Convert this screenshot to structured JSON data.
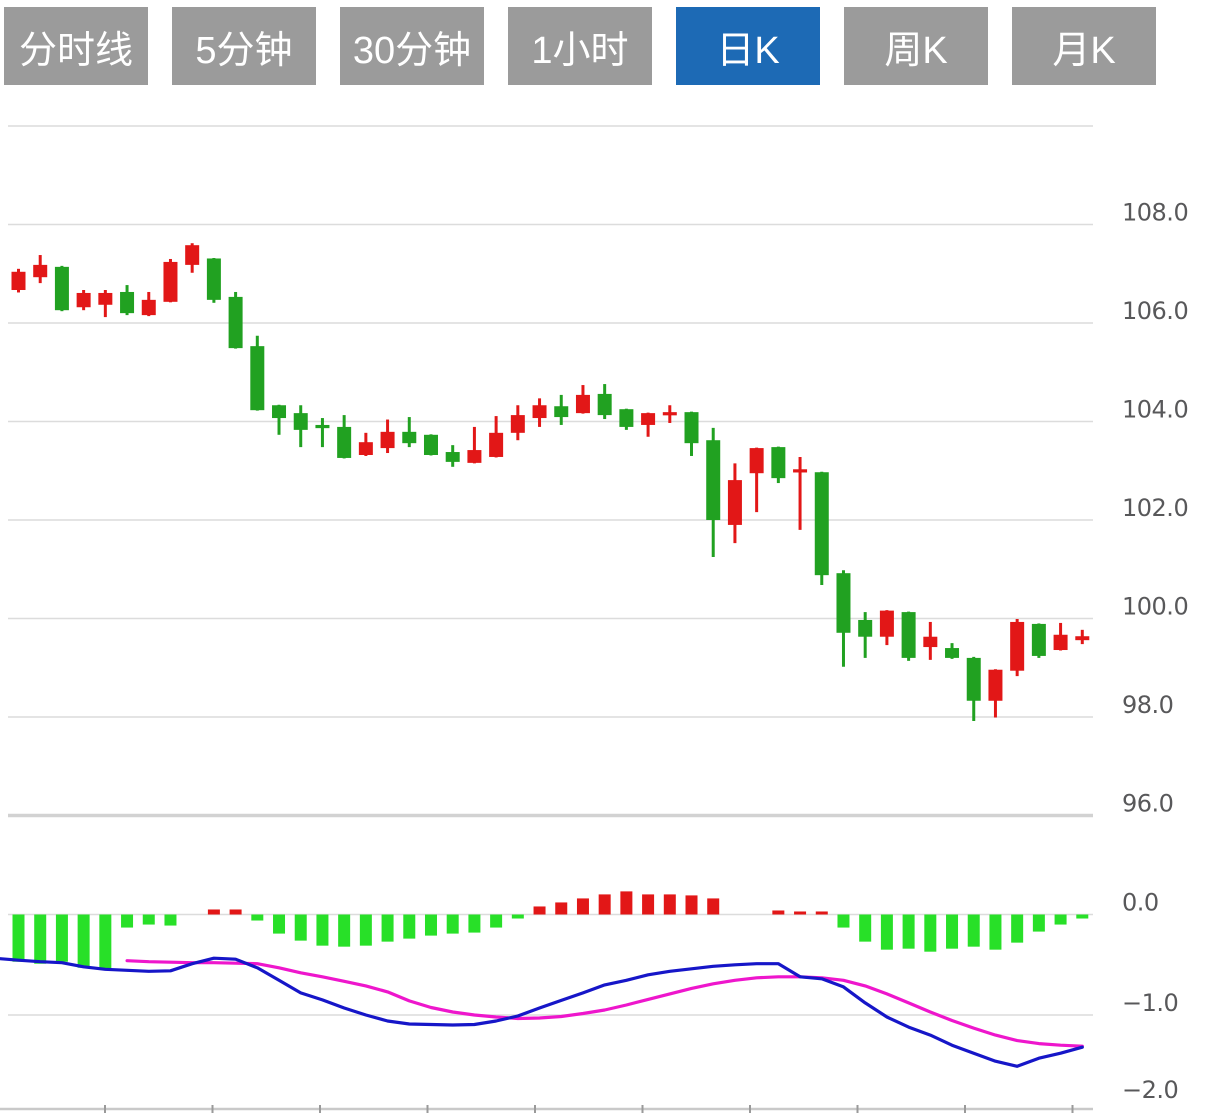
{
  "toolbar": {
    "tabs": [
      {
        "id": "timeshare",
        "label": "分时线",
        "active": false
      },
      {
        "id": "5min",
        "label": "5分钟",
        "active": false
      },
      {
        "id": "30min",
        "label": "30分钟",
        "active": false
      },
      {
        "id": "1hour",
        "label": "1小时",
        "active": false
      },
      {
        "id": "daily-k",
        "label": "日K",
        "active": true
      },
      {
        "id": "weekly-k",
        "label": "周K",
        "active": false
      },
      {
        "id": "monthly-k",
        "label": "月K",
        "active": false
      }
    ],
    "colors": {
      "active_bg": "#1d6ab5",
      "inactive_bg": "#9b9b9b",
      "text": "#ffffff"
    }
  },
  "chart_data": {
    "type": "candlestick+macd",
    "description": "Daily K-line (candlestick) chart with MACD sub-pane; red = up, green = down (CN convention)",
    "price_pane": {
      "ylim": [
        95.0,
        110.0
      ],
      "grid_values": [
        110,
        108,
        106,
        104,
        102,
        100,
        98,
        96
      ],
      "axis_ticks": [
        {
          "label": "108.0",
          "value": 108
        },
        {
          "label": "106.0",
          "value": 106
        },
        {
          "label": "104.0",
          "value": 104
        },
        {
          "label": "102.0",
          "value": 102
        },
        {
          "label": "100.0",
          "value": 100
        },
        {
          "label": "98.0",
          "value": 98
        },
        {
          "label": "96.0",
          "value": 96
        }
      ],
      "candles_ohlc": [
        [
          106.67,
          107.1,
          106.62,
          107.04
        ],
        [
          106.93,
          107.38,
          106.81,
          107.18
        ],
        [
          107.14,
          107.16,
          106.24,
          106.26
        ],
        [
          106.32,
          106.67,
          106.26,
          106.61
        ],
        [
          106.37,
          106.67,
          106.12,
          106.61
        ],
        [
          106.63,
          106.77,
          106.16,
          106.2
        ],
        [
          106.16,
          106.63,
          106.14,
          106.47
        ],
        [
          106.43,
          107.3,
          106.42,
          107.24
        ],
        [
          107.18,
          107.62,
          107.02,
          107.58
        ],
        [
          107.31,
          107.32,
          106.41,
          106.47
        ],
        [
          106.53,
          106.63,
          105.48,
          105.49
        ],
        [
          105.53,
          105.74,
          104.22,
          104.23
        ],
        [
          104.33,
          104.34,
          103.73,
          104.07
        ],
        [
          104.17,
          104.33,
          103.48,
          103.83
        ],
        [
          103.93,
          104.07,
          103.48,
          103.87
        ],
        [
          103.89,
          104.13,
          103.25,
          103.26
        ],
        [
          103.32,
          103.77,
          103.3,
          103.58
        ],
        [
          103.46,
          104.04,
          103.36,
          103.79
        ],
        [
          103.79,
          104.09,
          103.48,
          103.56
        ],
        [
          103.73,
          103.74,
          103.31,
          103.32
        ],
        [
          103.38,
          103.52,
          103.08,
          103.18
        ],
        [
          103.16,
          103.89,
          103.15,
          103.42
        ],
        [
          103.28,
          104.11,
          103.27,
          103.77
        ],
        [
          103.77,
          104.33,
          103.62,
          104.13
        ],
        [
          104.07,
          104.47,
          103.89,
          104.33
        ],
        [
          104.31,
          104.54,
          103.93,
          104.09
        ],
        [
          104.17,
          104.74,
          104.16,
          104.54
        ],
        [
          104.56,
          104.76,
          104.05,
          104.13
        ],
        [
          104.25,
          104.26,
          103.83,
          103.89
        ],
        [
          103.93,
          104.18,
          103.69,
          104.17
        ],
        [
          104.13,
          104.33,
          103.97,
          104.19
        ],
        [
          104.19,
          104.2,
          103.3,
          103.56
        ],
        [
          103.62,
          103.87,
          101.25,
          102.0
        ],
        [
          101.9,
          103.15,
          101.53,
          102.81
        ],
        [
          102.95,
          103.47,
          102.16,
          103.46
        ],
        [
          103.48,
          103.49,
          102.75,
          102.85
        ],
        [
          102.97,
          103.28,
          101.8,
          103.03
        ],
        [
          102.97,
          102.98,
          100.68,
          100.88
        ],
        [
          100.92,
          100.98,
          99.02,
          99.71
        ],
        [
          99.97,
          100.13,
          99.2,
          99.63
        ],
        [
          99.63,
          100.17,
          99.46,
          100.16
        ],
        [
          100.13,
          100.14,
          99.14,
          99.2
        ],
        [
          99.42,
          99.93,
          99.16,
          99.63
        ],
        [
          99.4,
          99.5,
          99.18,
          99.2
        ],
        [
          99.2,
          99.22,
          97.92,
          98.33
        ],
        [
          98.33,
          98.97,
          97.99,
          98.96
        ],
        [
          98.94,
          99.99,
          98.83,
          99.93
        ],
        [
          99.89,
          99.9,
          99.2,
          99.24
        ],
        [
          99.36,
          99.91,
          99.35,
          99.67
        ],
        [
          99.56,
          99.77,
          99.48,
          99.64
        ]
      ]
    },
    "macd_pane": {
      "ylim": [
        -2.0,
        0.3
      ],
      "grid_values": [
        0,
        -1
      ],
      "axis_ticks": [
        {
          "label": "0.0",
          "value": 0
        },
        {
          "label": "−1.0",
          "value": -1
        },
        {
          "label": "−2.0",
          "value": -2
        }
      ],
      "histogram": [
        -0.47,
        -0.49,
        -0.47,
        -0.53,
        -0.55,
        -0.13,
        -0.1,
        -0.11,
        0,
        0.05,
        0.05,
        -0.06,
        -0.19,
        -0.26,
        -0.31,
        -0.32,
        -0.31,
        -0.27,
        -0.24,
        -0.21,
        -0.19,
        -0.18,
        -0.13,
        -0.04,
        0.08,
        0.12,
        0.16,
        0.2,
        0.23,
        0.2,
        0.2,
        0.19,
        0.16,
        0,
        0,
        0.04,
        0.03,
        0.03,
        -0.13,
        -0.27,
        -0.35,
        -0.34,
        -0.37,
        -0.34,
        -0.32,
        -0.35,
        -0.28,
        -0.17,
        -0.1,
        -0.04
      ],
      "dif_left_edge": -0.44,
      "dif": [
        -0.455,
        -0.47,
        -0.48,
        -0.52,
        -0.545,
        -0.555,
        -0.565,
        -0.56,
        -0.49,
        -0.435,
        -0.445,
        -0.53,
        -0.655,
        -0.78,
        -0.85,
        -0.93,
        -1.0,
        -1.06,
        -1.09,
        -1.095,
        -1.1,
        -1.095,
        -1.06,
        -1.01,
        -0.93,
        -0.855,
        -0.78,
        -0.7,
        -0.655,
        -0.6,
        -0.565,
        -0.54,
        -0.515,
        -0.5,
        -0.49,
        -0.49,
        -0.62,
        -0.64,
        -0.72,
        -0.88,
        -1.02,
        -1.12,
        -1.2,
        -1.3,
        -1.38,
        -1.46,
        -1.51,
        -1.43,
        -1.38,
        -1.32
      ],
      "dea": [
        null,
        null,
        null,
        null,
        null,
        -0.46,
        -0.47,
        -0.475,
        -0.48,
        -0.48,
        -0.485,
        -0.49,
        -0.53,
        -0.58,
        -0.62,
        -0.665,
        -0.71,
        -0.77,
        -0.86,
        -0.925,
        -0.97,
        -1.0,
        -1.02,
        -1.035,
        -1.03,
        -1.015,
        -0.985,
        -0.95,
        -0.9,
        -0.845,
        -0.79,
        -0.735,
        -0.69,
        -0.655,
        -0.63,
        -0.62,
        -0.62,
        -0.63,
        -0.655,
        -0.71,
        -0.79,
        -0.88,
        -0.97,
        -1.055,
        -1.13,
        -1.2,
        -1.255,
        -1.285,
        -1.3,
        -1.31
      ]
    },
    "x_axis": {
      "tick_count": 10
    },
    "colors": {
      "up": "#e21717",
      "down": "#21a121",
      "hist_up": "#e21717",
      "hist_down": "#28e028",
      "dif_line": "#1616c8",
      "dea_line": "#ee16cc",
      "grid": "#dcdcdc",
      "grid_emphasis": "#d2d2d2",
      "axis_line": "#c9c9c9",
      "axis_tick": "#9a9a9a",
      "label": "#58585a"
    }
  }
}
